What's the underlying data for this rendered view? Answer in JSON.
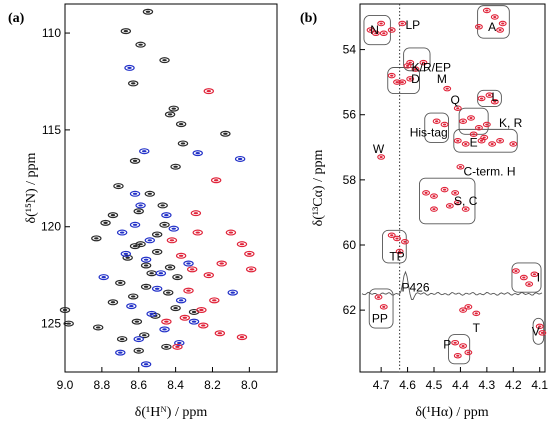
{
  "chart_data": [
    {
      "panel_label": "(a)",
      "type": "scatter",
      "subtype": "2D NMR spectrum overlay (1H-15N)",
      "xlabel": "δ(¹Hᴺ) / ppm",
      "ylabel": "δ(¹⁵N) / ppm",
      "xlim": [
        9.0,
        7.85
      ],
      "ylim": [
        127.5,
        108.5
      ],
      "x_reversed": true,
      "y_reversed": true,
      "xticks": [
        "9.0",
        "8.8",
        "8.6",
        "8.4",
        "8.2",
        "8.0"
      ],
      "xtick_values": [
        9.0,
        8.8,
        8.6,
        8.4,
        8.2,
        8.0
      ],
      "yticks": [
        "110",
        "115",
        "120",
        "125"
      ],
      "ytick_values": [
        110,
        115,
        120,
        125
      ],
      "series_colors": {
        "black": "#2a2a2a",
        "blue": "#2231c8",
        "red": "#e0243a"
      },
      "series": [
        {
          "color": "black",
          "points": [
            [
              8.55,
              108.9
            ],
            [
              8.67,
              109.9
            ],
            [
              8.59,
              110.6
            ],
            [
              8.46,
              111.4
            ],
            [
              8.63,
              112.6
            ],
            [
              8.41,
              113.9
            ],
            [
              8.43,
              114.2
            ],
            [
              8.37,
              114.7
            ],
            [
              8.13,
              115.2
            ],
            [
              8.36,
              115.7
            ],
            [
              8.4,
              116.9
            ],
            [
              8.62,
              116.6
            ],
            [
              8.71,
              117.9
            ],
            [
              8.54,
              118.3
            ],
            [
              8.47,
              118.9
            ],
            [
              8.6,
              119.2
            ],
            [
              8.74,
              119.4
            ],
            [
              8.78,
              119.8
            ],
            [
              8.46,
              119.9
            ],
            [
              8.83,
              120.6
            ],
            [
              8.59,
              120.9
            ],
            [
              8.5,
              121.3
            ],
            [
              8.66,
              121.6
            ],
            [
              8.43,
              122.1
            ],
            [
              8.53,
              122.4
            ],
            [
              8.39,
              122.6
            ],
            [
              8.7,
              122.9
            ],
            [
              8.56,
              123.1
            ],
            [
              8.44,
              123.4
            ],
            [
              8.63,
              123.6
            ],
            [
              8.74,
              123.9
            ],
            [
              8.4,
              124.2
            ],
            [
              8.3,
              124.4
            ],
            [
              8.51,
              124.6
            ],
            [
              8.61,
              124.9
            ],
            [
              8.82,
              125.2
            ],
            [
              8.57,
              125.6
            ],
            [
              8.69,
              125.8
            ],
            [
              8.45,
              126.2
            ],
            [
              8.6,
              126.4
            ],
            [
              9.0,
              124.3
            ],
            [
              8.98,
              125.0
            ],
            [
              8.56,
              122.0
            ],
            [
              8.62,
              121.0
            ],
            [
              8.5,
              120.4
            ]
          ]
        },
        {
          "color": "blue",
          "points": [
            [
              8.65,
              111.8
            ],
            [
              8.57,
              116.1
            ],
            [
              8.62,
              118.3
            ],
            [
              8.69,
              120.3
            ],
            [
              8.54,
              120.7
            ],
            [
              8.41,
              120.1
            ],
            [
              8.56,
              121.7
            ],
            [
              8.48,
              122.4
            ],
            [
              8.5,
              123.2
            ],
            [
              8.37,
              123.8
            ],
            [
              8.64,
              124.1
            ],
            [
              8.53,
              124.5
            ],
            [
              8.3,
              124.9
            ],
            [
              8.46,
              125.3
            ],
            [
              8.6,
              125.8
            ],
            [
              8.38,
              126.0
            ],
            [
              8.7,
              126.5
            ],
            [
              8.56,
              127.1
            ],
            [
              8.09,
              123.4
            ],
            [
              8.79,
              122.6
            ],
            [
              8.67,
              121.4
            ],
            [
              8.45,
              119.4
            ],
            [
              8.59,
              118.9
            ],
            [
              8.33,
              121.9
            ],
            [
              8.62,
              119.9
            ],
            [
              8.28,
              116.2
            ],
            [
              8.05,
              116.5
            ]
          ]
        },
        {
          "color": "red",
          "points": [
            [
              8.22,
              113.0
            ],
            [
              8.18,
              117.6
            ],
            [
              8.29,
              119.3
            ],
            [
              8.1,
              120.3
            ],
            [
              8.04,
              120.9
            ],
            [
              8.0,
              121.4
            ],
            [
              7.99,
              122.2
            ],
            [
              8.15,
              121.9
            ],
            [
              8.22,
              122.5
            ],
            [
              8.31,
              122.2
            ],
            [
              8.37,
              121.5
            ],
            [
              8.42,
              120.7
            ],
            [
              8.33,
              123.3
            ],
            [
              8.26,
              124.3
            ],
            [
              8.45,
              124.9
            ],
            [
              8.16,
              125.5
            ],
            [
              8.39,
              126.2
            ],
            [
              8.04,
              125.7
            ],
            [
              8.25,
              125.1
            ],
            [
              8.28,
              120.3
            ],
            [
              8.35,
              124.7
            ],
            [
              8.19,
              123.8
            ]
          ]
        }
      ]
    },
    {
      "panel_label": "(b)",
      "type": "scatter",
      "subtype": "2D NMR spectrum (1Hα-13Cα)",
      "xlabel": "δ(¹Hα) / ppm",
      "ylabel": "δ(¹³Cα) / ppm",
      "xlim": [
        4.78,
        4.08
      ],
      "ylim": [
        63.9,
        52.6
      ],
      "x_reversed": true,
      "y_reversed": true,
      "xticks": [
        "4.7",
        "4.6",
        "4.5",
        "4.4",
        "4.3",
        "4.2",
        "4.1"
      ],
      "xtick_values": [
        4.7,
        4.6,
        4.5,
        4.4,
        4.3,
        4.2,
        4.1
      ],
      "yticks": [
        "54",
        "56",
        "58",
        "60",
        "62"
      ],
      "ytick_values": [
        54,
        56,
        58,
        60,
        62
      ],
      "vertical_reference_line_ppm": 4.63,
      "projection_trace_baseline_ppm": 61.5,
      "peak_color": "#e0243a",
      "peaks": [
        [
          4.74,
          53.4
        ],
        [
          4.72,
          53.5
        ],
        [
          4.7,
          53.2
        ],
        [
          4.69,
          53.5
        ],
        [
          4.66,
          53.4
        ],
        [
          4.62,
          53.2
        ],
        [
          4.3,
          52.8
        ],
        [
          4.27,
          53.0
        ],
        [
          4.33,
          53.3
        ],
        [
          4.25,
          53.4
        ],
        [
          4.24,
          53.2
        ],
        [
          4.59,
          54.4
        ],
        [
          4.57,
          54.6
        ],
        [
          4.54,
          54.4
        ],
        [
          4.6,
          54.5
        ],
        [
          4.66,
          54.8
        ],
        [
          4.62,
          55.0
        ],
        [
          4.59,
          54.9
        ],
        [
          4.64,
          55.0
        ],
        [
          4.45,
          55.2
        ],
        [
          4.41,
          55.8
        ],
        [
          4.32,
          55.5
        ],
        [
          4.29,
          55.4
        ],
        [
          4.27,
          55.6
        ],
        [
          4.49,
          56.2
        ],
        [
          4.46,
          56.3
        ],
        [
          4.39,
          56.2
        ],
        [
          4.36,
          56.1
        ],
        [
          4.33,
          56.4
        ],
        [
          4.3,
          56.3
        ],
        [
          4.35,
          56.6
        ],
        [
          4.31,
          56.7
        ],
        [
          4.41,
          56.8
        ],
        [
          4.38,
          56.9
        ],
        [
          4.32,
          56.8
        ],
        [
          4.28,
          56.9
        ],
        [
          4.25,
          56.8
        ],
        [
          4.2,
          56.9
        ],
        [
          4.7,
          57.3
        ],
        [
          4.4,
          57.6
        ],
        [
          4.53,
          58.4
        ],
        [
          4.5,
          58.5
        ],
        [
          4.46,
          58.3
        ],
        [
          4.44,
          58.8
        ],
        [
          4.41,
          58.7
        ],
        [
          4.38,
          58.9
        ],
        [
          4.5,
          58.9
        ],
        [
          4.42,
          58.4
        ],
        [
          4.66,
          59.7
        ],
        [
          4.64,
          59.8
        ],
        [
          4.61,
          59.9
        ],
        [
          4.63,
          60.2
        ],
        [
          4.19,
          60.8
        ],
        [
          4.16,
          61.0
        ],
        [
          4.14,
          61.2
        ],
        [
          4.12,
          60.9
        ],
        [
          4.71,
          61.6
        ],
        [
          4.69,
          61.9
        ],
        [
          4.39,
          62.0
        ],
        [
          4.37,
          61.9
        ],
        [
          4.34,
          62.1
        ],
        [
          4.1,
          62.5
        ],
        [
          4.09,
          62.7
        ],
        [
          4.42,
          63.0
        ],
        [
          4.39,
          63.1
        ],
        [
          4.41,
          63.4
        ],
        [
          4.37,
          63.3
        ]
      ],
      "annotations": [
        {
          "text": "N",
          "x": 4.725,
          "y": 53.4
        },
        {
          "text": "LP",
          "x": 4.58,
          "y": 53.25
        },
        {
          "text": "A",
          "x": 4.28,
          "y": 53.3
        },
        {
          "text": "K/R/EP",
          "x": 4.51,
          "y": 54.55
        },
        {
          "text": "D",
          "x": 4.57,
          "y": 54.9
        },
        {
          "text": "M",
          "x": 4.47,
          "y": 54.9
        },
        {
          "text": "L",
          "x": 4.27,
          "y": 55.45
        },
        {
          "text": "Q",
          "x": 4.42,
          "y": 55.55
        },
        {
          "text": "K, R",
          "x": 4.21,
          "y": 56.25
        },
        {
          "text": "His-tag",
          "x": 4.52,
          "y": 56.55
        },
        {
          "text": "E",
          "x": 4.35,
          "y": 56.85
        },
        {
          "text": "W",
          "x": 4.71,
          "y": 57.05
        },
        {
          "text": "C-term. H",
          "x": 4.29,
          "y": 57.75
        },
        {
          "text": "S, C",
          "x": 4.38,
          "y": 58.65
        },
        {
          "text": "TP",
          "x": 4.64,
          "y": 60.35
        },
        {
          "text": "P426",
          "x": 4.57,
          "y": 61.3
        },
        {
          "text": "I",
          "x": 4.105,
          "y": 61.0
        },
        {
          "text": "PP",
          "x": 4.705,
          "y": 62.25
        },
        {
          "text": "T",
          "x": 4.34,
          "y": 62.55
        },
        {
          "text": "V",
          "x": 4.115,
          "y": 62.65
        },
        {
          "text": "P",
          "x": 4.45,
          "y": 63.05
        }
      ],
      "boxes": [
        {
          "x0": 4.765,
          "x1": 4.665,
          "y0": 52.95,
          "y1": 53.85
        },
        {
          "x0": 4.335,
          "x1": 4.215,
          "y0": 52.65,
          "y1": 53.65
        },
        {
          "x0": 4.615,
          "x1": 4.515,
          "y0": 53.95,
          "y1": 54.65
        },
        {
          "x0": 4.675,
          "x1": 4.555,
          "y0": 54.55,
          "y1": 55.35
        },
        {
          "x0": 4.335,
          "x1": 4.245,
          "y0": 55.25,
          "y1": 55.75
        },
        {
          "x0": 4.535,
          "x1": 4.445,
          "y0": 55.95,
          "y1": 56.85
        },
        {
          "x0": 4.405,
          "x1": 4.295,
          "y0": 55.8,
          "y1": 56.6
        },
        {
          "x0": 4.425,
          "x1": 4.185,
          "y0": 56.45,
          "y1": 57.15
        },
        {
          "x0": 4.555,
          "x1": 4.345,
          "y0": 57.95,
          "y1": 59.35
        },
        {
          "x0": 4.695,
          "x1": 4.605,
          "y0": 59.55,
          "y1": 60.55
        },
        {
          "x0": 4.205,
          "x1": 4.095,
          "y0": 60.55,
          "y1": 61.45
        },
        {
          "x0": 4.745,
          "x1": 4.655,
          "y0": 61.35,
          "y1": 62.55
        },
        {
          "x0": 4.125,
          "x1": 4.085,
          "y0": 62.25,
          "y1": 63.05
        },
        {
          "x0": 4.445,
          "x1": 4.365,
          "y0": 62.75,
          "y1": 63.65
        }
      ]
    }
  ]
}
